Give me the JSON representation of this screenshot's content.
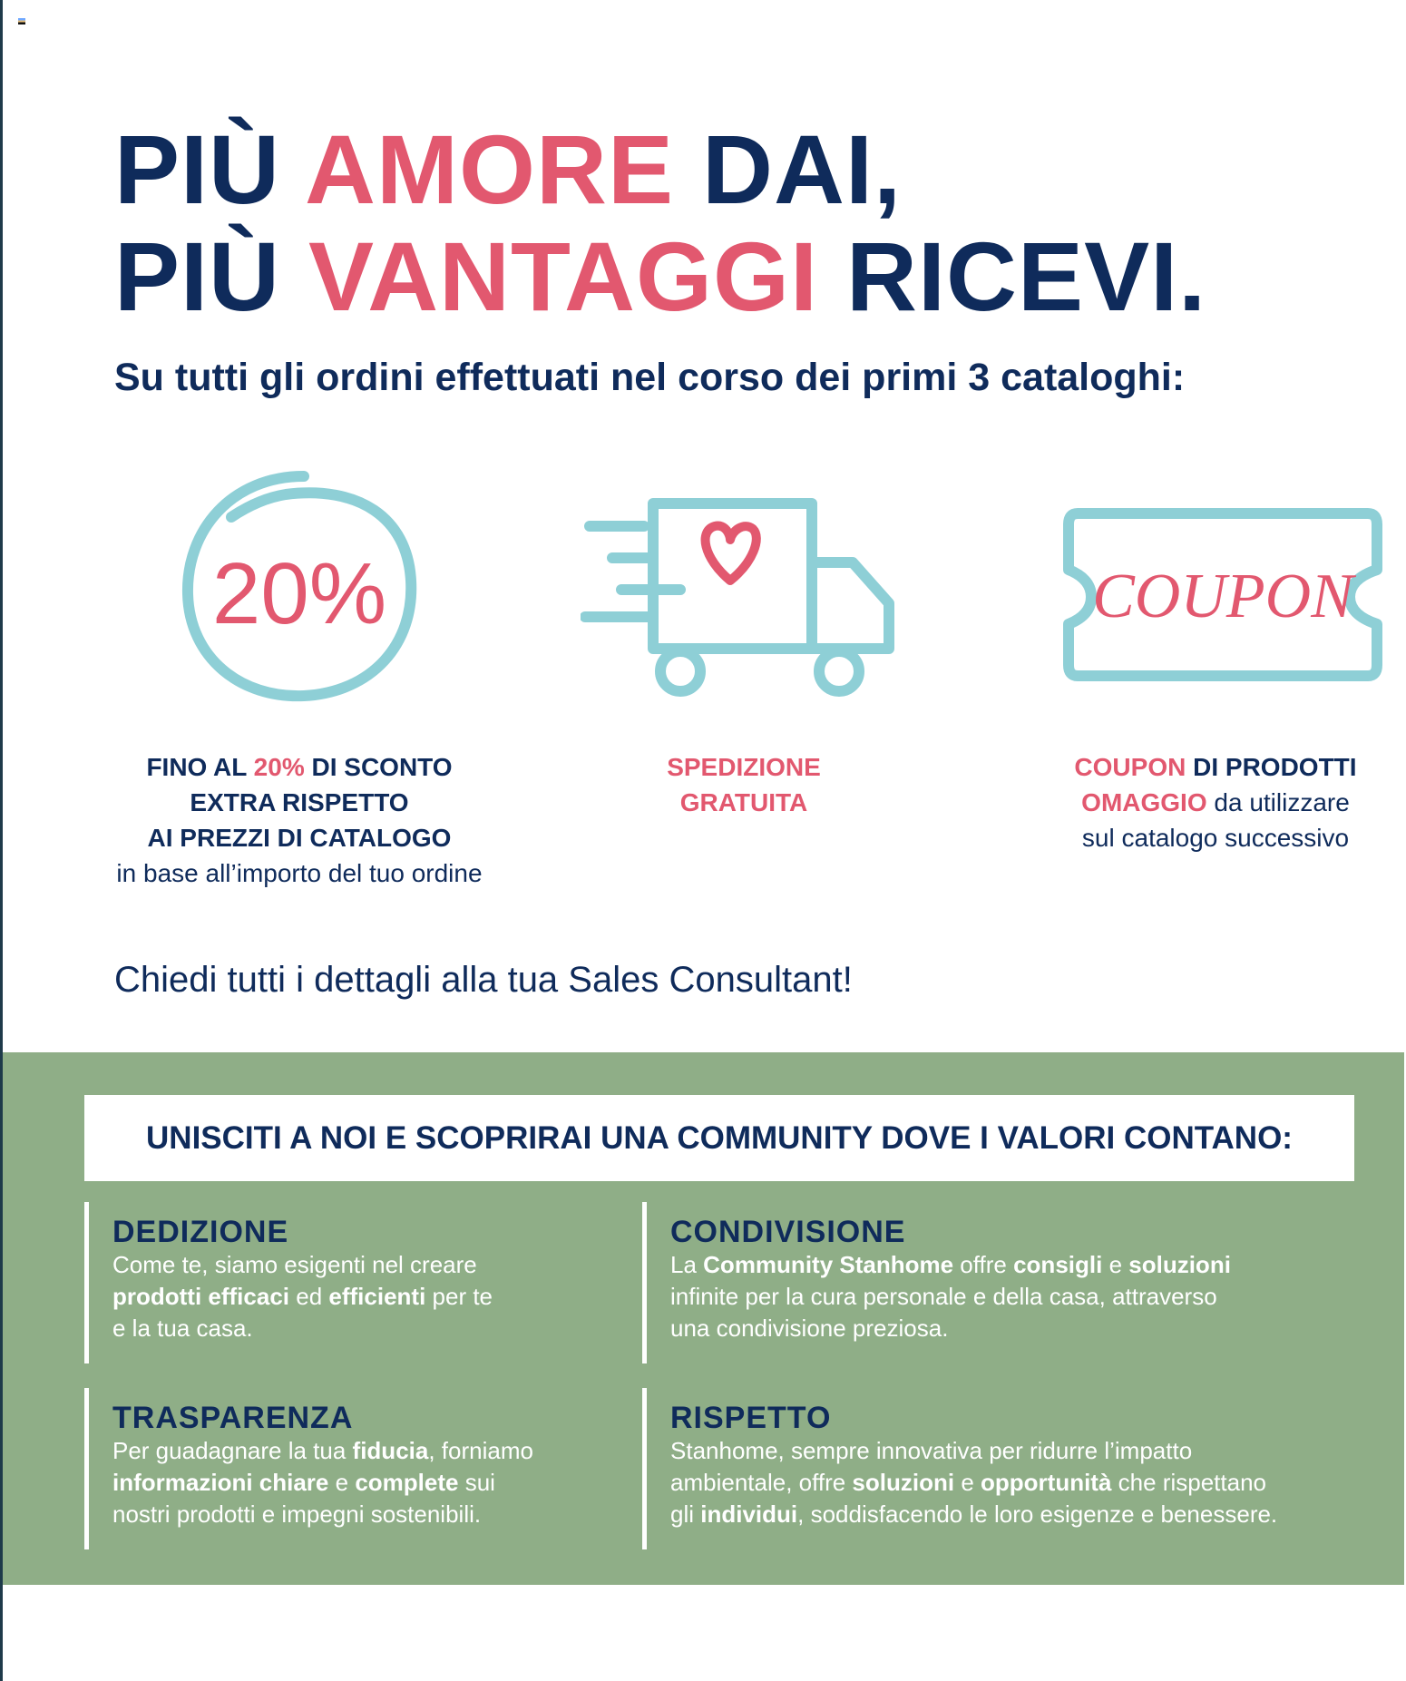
{
  "colors": {
    "navy": "#0f2b5b",
    "pink": "#e2586f",
    "teal": "#8ecfd6",
    "green": "#8fae87"
  },
  "title": {
    "line1": [
      "PIÙ ",
      "AMORE",
      " DAI,"
    ],
    "line2": [
      "PIÙ ",
      "VANTAGGI",
      " RICEVI."
    ]
  },
  "subtitle": "Su tutti gli ordini effettuati nel corso dei primi 3 cataloghi:",
  "benefits": [
    {
      "icon": "discount-circle-icon",
      "icon_text": "20%",
      "lines": [
        [
          "FINO AL ",
          "20%",
          " DI SCONTO"
        ],
        "EXTRA RISPETTO",
        "AI PREZZI DI CATALOGO"
      ],
      "note": "in base all’importo del tuo ordine"
    },
    {
      "icon": "delivery-truck-heart-icon",
      "lines": [
        "SPEDIZIONE",
        "GRATUITA"
      ]
    },
    {
      "icon": "coupon-ticket-icon",
      "icon_text": "COUPON",
      "lines": [
        [
          "COUPON",
          " DI PRODOTTI"
        ],
        [
          "OMAGGIO",
          " da utilizzare"
        ],
        "sul catalogo successivo"
      ]
    }
  ],
  "ask": "Chiedi tutti i dettagli alla tua Sales Consultant!",
  "community": {
    "banner": "UNISCITI A NOI E SCOPRIRAI UNA COMMUNITY DOVE I VALORI CONTANO:",
    "values": [
      {
        "title": "DEDIZIONE",
        "t": [
          "Come te, siamo esigenti nel creare",
          "prodotti efficaci",
          " ed ",
          "efficienti",
          " per te",
          "e la tua casa."
        ]
      },
      {
        "title": "CONDIVISIONE",
        "t": [
          "La ",
          "Community Stanhome",
          " offre ",
          "consigli",
          " e ",
          "soluzioni",
          "infinite per la cura personale e della casa, attraverso",
          "una condivisione preziosa."
        ]
      },
      {
        "title": "TRASPARENZA",
        "t": [
          "Per guadagnare la tua ",
          "fiducia",
          ", forniamo",
          "informazioni chiare",
          " e ",
          "complete",
          " sui",
          "nostri prodotti e impegni sostenibili."
        ]
      },
      {
        "title": "RISPETTO",
        "t": [
          "Stanhome, sempre innovativa per ridurre l’impatto",
          "ambientale, offre ",
          "soluzioni",
          " e ",
          "opportunità",
          " che rispettano",
          "gli ",
          "individui",
          ", soddisfacendo le loro esigenze e benessere."
        ]
      }
    ]
  }
}
